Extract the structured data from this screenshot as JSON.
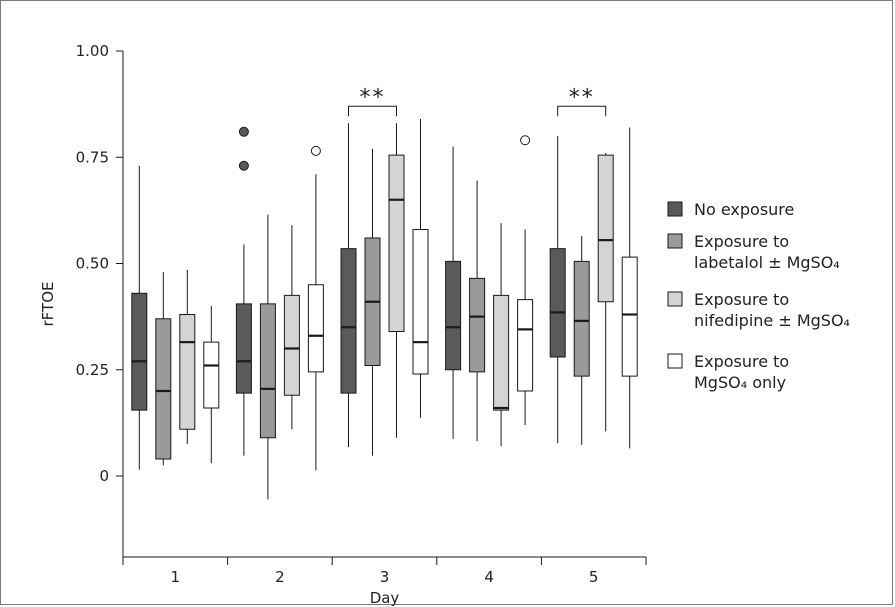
{
  "chart_data": {
    "type": "box",
    "title": "",
    "xlabel": "Day",
    "ylabel": "rFTOE",
    "ylim": [
      -0.13,
      1.0
    ],
    "yticks": [
      0,
      0.25,
      0.5,
      0.75,
      1.0
    ],
    "ytick_labels": [
      "0",
      "0.25",
      "0.50",
      "0.75",
      "1.00"
    ],
    "categories": [
      "1",
      "2",
      "3",
      "4",
      "5"
    ],
    "grid": false,
    "legend_position": "right",
    "series": [
      {
        "name": "No exposure",
        "color": "#5a5a5a",
        "boxes": [
          {
            "min": 0.015,
            "q1": 0.155,
            "median": 0.27,
            "q3": 0.43,
            "max": 0.73,
            "outliers": []
          },
          {
            "min": 0.048,
            "q1": 0.195,
            "median": 0.27,
            "q3": 0.405,
            "max": 0.545,
            "outliers": [
              0.73,
              0.81
            ]
          },
          {
            "min": 0.068,
            "q1": 0.195,
            "median": 0.35,
            "q3": 0.535,
            "max": 0.83,
            "outliers": []
          },
          {
            "min": 0.087,
            "q1": 0.25,
            "median": 0.35,
            "q3": 0.505,
            "max": 0.775,
            "outliers": []
          },
          {
            "min": 0.077,
            "q1": 0.28,
            "median": 0.385,
            "q3": 0.535,
            "max": 0.8,
            "outliers": []
          }
        ]
      },
      {
        "name": "Exposure to labetalol ± MgSO₄",
        "color": "#9a9a9a",
        "boxes": [
          {
            "min": 0.025,
            "q1": 0.04,
            "median": 0.2,
            "q3": 0.37,
            "max": 0.48,
            "outliers": []
          },
          {
            "min": -0.055,
            "q1": 0.09,
            "median": 0.205,
            "q3": 0.405,
            "max": 0.615,
            "outliers": []
          },
          {
            "min": 0.048,
            "q1": 0.26,
            "median": 0.41,
            "q3": 0.56,
            "max": 0.77,
            "outliers": []
          },
          {
            "min": 0.082,
            "q1": 0.245,
            "median": 0.375,
            "q3": 0.465,
            "max": 0.695,
            "outliers": []
          },
          {
            "min": 0.073,
            "q1": 0.235,
            "median": 0.365,
            "q3": 0.505,
            "max": 0.565,
            "outliers": []
          }
        ]
      },
      {
        "name": "Exposure to nifedipine ± MgSO₄",
        "color": "#d4d4d4",
        "boxes": [
          {
            "min": 0.075,
            "q1": 0.11,
            "median": 0.315,
            "q3": 0.38,
            "max": 0.485,
            "outliers": []
          },
          {
            "min": 0.11,
            "q1": 0.19,
            "median": 0.3,
            "q3": 0.425,
            "max": 0.59,
            "outliers": []
          },
          {
            "min": 0.09,
            "q1": 0.34,
            "median": 0.65,
            "q3": 0.755,
            "max": 0.83,
            "outliers": []
          },
          {
            "min": 0.07,
            "q1": 0.155,
            "median": 0.16,
            "q3": 0.425,
            "max": 0.595,
            "outliers": []
          },
          {
            "min": 0.105,
            "q1": 0.41,
            "median": 0.555,
            "q3": 0.755,
            "max": 0.76,
            "outliers": []
          }
        ]
      },
      {
        "name": "Exposure to MgSO₄ only",
        "color": "#ffffff",
        "boxes": [
          {
            "min": 0.03,
            "q1": 0.16,
            "median": 0.26,
            "q3": 0.315,
            "max": 0.4,
            "outliers": []
          },
          {
            "min": 0.013,
            "q1": 0.245,
            "median": 0.33,
            "q3": 0.45,
            "max": 0.71,
            "outliers": [
              0.765
            ]
          },
          {
            "min": 0.137,
            "q1": 0.24,
            "median": 0.315,
            "q3": 0.58,
            "max": 0.84,
            "outliers": []
          },
          {
            "min": 0.12,
            "q1": 0.2,
            "median": 0.345,
            "q3": 0.415,
            "max": 0.58,
            "outliers": [
              0.79
            ]
          },
          {
            "min": 0.065,
            "q1": 0.235,
            "median": 0.38,
            "q3": 0.515,
            "max": 0.82,
            "outliers": []
          }
        ]
      }
    ],
    "annotations": [
      {
        "category_index": 2,
        "from_series": 0,
        "to_series": 2,
        "text": "**",
        "y": 0.87
      },
      {
        "category_index": 4,
        "from_series": 0,
        "to_series": 2,
        "text": "**",
        "y": 0.87
      }
    ],
    "legend": {
      "entries": [
        {
          "lines": [
            "No exposure"
          ],
          "series_index": 0
        },
        {
          "lines": [
            "Exposure to",
            "labetalol ± MgSO₄"
          ],
          "series_index": 1
        },
        {
          "lines": [
            "Exposure to",
            "nifedipine ± MgSO₄"
          ],
          "series_index": 2
        },
        {
          "lines": [
            "Exposure to",
            "MgSO₄ only"
          ],
          "series_index": 3
        }
      ]
    }
  }
}
